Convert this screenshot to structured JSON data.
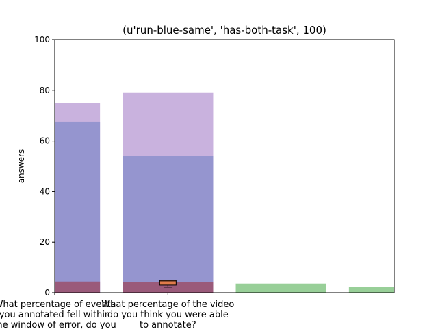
{
  "chart_data": {
    "type": "bar",
    "title": "(u'run-blue-same', 'has-both-task', 100)",
    "xlabel": "",
    "ylabel": "answers",
    "ylim": [
      0,
      100
    ],
    "yticks": [
      0,
      20,
      40,
      60,
      80,
      100
    ],
    "grid": false,
    "categories": [
      [
        "What percentage of events",
        "you annotated fell within",
        "the window of error, do you"
      ],
      [
        "What percentage of the video",
        "do you think you were able",
        "to annotate?"
      ]
    ],
    "series": [
      {
        "color": "#c9b2de",
        "bars": [
          {
            "x0": 0.0,
            "x1": 0.5,
            "value": 74.8
          },
          {
            "x0": 0.75,
            "x1": 1.75,
            "value": 79.2
          }
        ]
      },
      {
        "color": "#9595cf",
        "bars": [
          {
            "x0": 0.0,
            "x1": 0.5,
            "value": 67.5
          },
          {
            "x0": 0.75,
            "x1": 1.75,
            "value": 54.2
          }
        ]
      },
      {
        "color": "#9a5a7a",
        "bars": [
          {
            "x0": 0.0,
            "x1": 0.5,
            "value": 4.4
          },
          {
            "x0": 0.75,
            "x1": 1.75,
            "value": 4.1
          }
        ]
      },
      {
        "color": "#98cf98",
        "bars": [
          {
            "x0": 2.0,
            "x1": 3.0,
            "value": 3.6
          },
          {
            "x0": 3.25,
            "x1": 3.75,
            "value": 2.3
          }
        ]
      }
    ],
    "boxplot": {
      "x": 1.25,
      "whisker_low": 2.2,
      "q1": 3.0,
      "median": 4.3,
      "q3": 4.8,
      "whisker_high": 5.0,
      "color": "#e07b4a"
    },
    "xlim": [
      0,
      3.75
    ]
  }
}
